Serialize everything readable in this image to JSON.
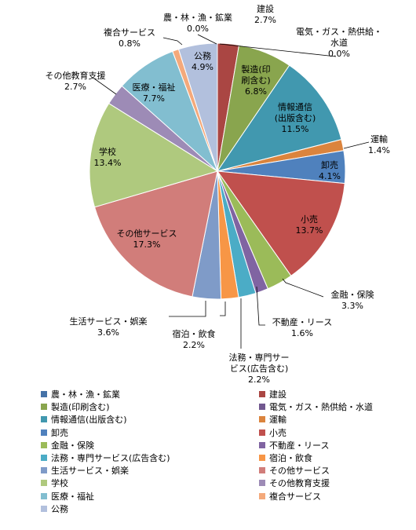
{
  "chart_data": {
    "type": "pie",
    "title": "",
    "slices": [
      {
        "name": "農・林・漁・鉱業",
        "value": 0.0,
        "label": "0.0%",
        "color": "#4572A7"
      },
      {
        "name": "建設",
        "value": 2.7,
        "label": "2.7%",
        "color": "#AA4643"
      },
      {
        "name": "製造(印刷含む)",
        "value": 6.8,
        "label": "6.8%",
        "color": "#89A54E"
      },
      {
        "name": "電気・ガス・熱供給・水道",
        "value": 0.0,
        "label": "0.0%",
        "color": "#71588F"
      },
      {
        "name": "情報通信(出版含む)",
        "value": 11.5,
        "label": "11.5%",
        "color": "#4198AF"
      },
      {
        "name": "運輸",
        "value": 1.4,
        "label": "1.4%",
        "color": "#DB843D"
      },
      {
        "name": "卸売",
        "value": 4.1,
        "label": "4.1%",
        "color": "#4F81BD"
      },
      {
        "name": "小売",
        "value": 13.7,
        "label": "13.7%",
        "color": "#C0504D"
      },
      {
        "name": "金融・保険",
        "value": 3.3,
        "label": "3.3%",
        "color": "#9BBB59"
      },
      {
        "name": "不動産・リース",
        "value": 1.6,
        "label": "1.6%",
        "color": "#8064A2"
      },
      {
        "name": "法務・専門サービス(広告含む)",
        "value": 2.2,
        "label": "2.2%",
        "color": "#4BACC6"
      },
      {
        "name": "宿泊・飲食",
        "value": 2.2,
        "label": "2.2%",
        "color": "#F79646"
      },
      {
        "name": "生活サービス・娯楽",
        "value": 3.6,
        "label": "3.6%",
        "color": "#7F9BC8"
      },
      {
        "name": "その他サービス",
        "value": 17.3,
        "label": "17.3%",
        "color": "#D17D7A"
      },
      {
        "name": "学校",
        "value": 13.4,
        "label": "13.4%",
        "color": "#AFC97E"
      },
      {
        "name": "その他教育支援",
        "value": 2.7,
        "label": "2.7%",
        "color": "#9D8BB6"
      },
      {
        "name": "医療・福祉",
        "value": 7.7,
        "label": "7.7%",
        "color": "#82BED0"
      },
      {
        "name": "複合サービス",
        "value": 0.8,
        "label": "0.8%",
        "color": "#F4A97B"
      },
      {
        "name": "公務",
        "value": 4.9,
        "label": "4.9%",
        "color": "#B2C0DD"
      }
    ],
    "slice_labels": [
      {
        "lines": [
          "農・林・漁・鉱業",
          "0.0%"
        ]
      },
      {
        "lines": [
          "建設",
          "2.7%"
        ]
      },
      {
        "lines": [
          "製造(印",
          "刷含む)",
          "6.8%"
        ]
      },
      {
        "lines": [
          "電気・ガス・熱供給・",
          "水道",
          "0.0%"
        ]
      },
      {
        "lines": [
          "情報通信",
          "(出版含む)",
          "11.5%"
        ]
      },
      {
        "lines": [
          "運輸",
          "1.4%"
        ]
      },
      {
        "lines": [
          "卸売",
          "4.1%"
        ]
      },
      {
        "lines": [
          "小売",
          "13.7%"
        ]
      },
      {
        "lines": [
          "金融・保険",
          "3.3%"
        ]
      },
      {
        "lines": [
          "不動産・リース",
          "1.6%"
        ]
      },
      {
        "lines": [
          "法務・専門サー",
          "ビス(広告含む)",
          "2.2%"
        ]
      },
      {
        "lines": [
          "宿泊・飲食",
          "2.2%"
        ]
      },
      {
        "lines": [
          "生活サービス・娯楽",
          "3.6%"
        ]
      },
      {
        "lines": [
          "その他サービス",
          "17.3%"
        ]
      },
      {
        "lines": [
          "学校",
          "13.4%"
        ]
      },
      {
        "lines": [
          "その他教育支援",
          "2.7%"
        ]
      },
      {
        "lines": [
          "医療・福祉",
          "7.7%"
        ]
      },
      {
        "lines": [
          "複合サービス",
          "0.8%"
        ]
      },
      {
        "lines": [
          "公務",
          "4.9%"
        ]
      }
    ],
    "legend_position": "bottom"
  }
}
